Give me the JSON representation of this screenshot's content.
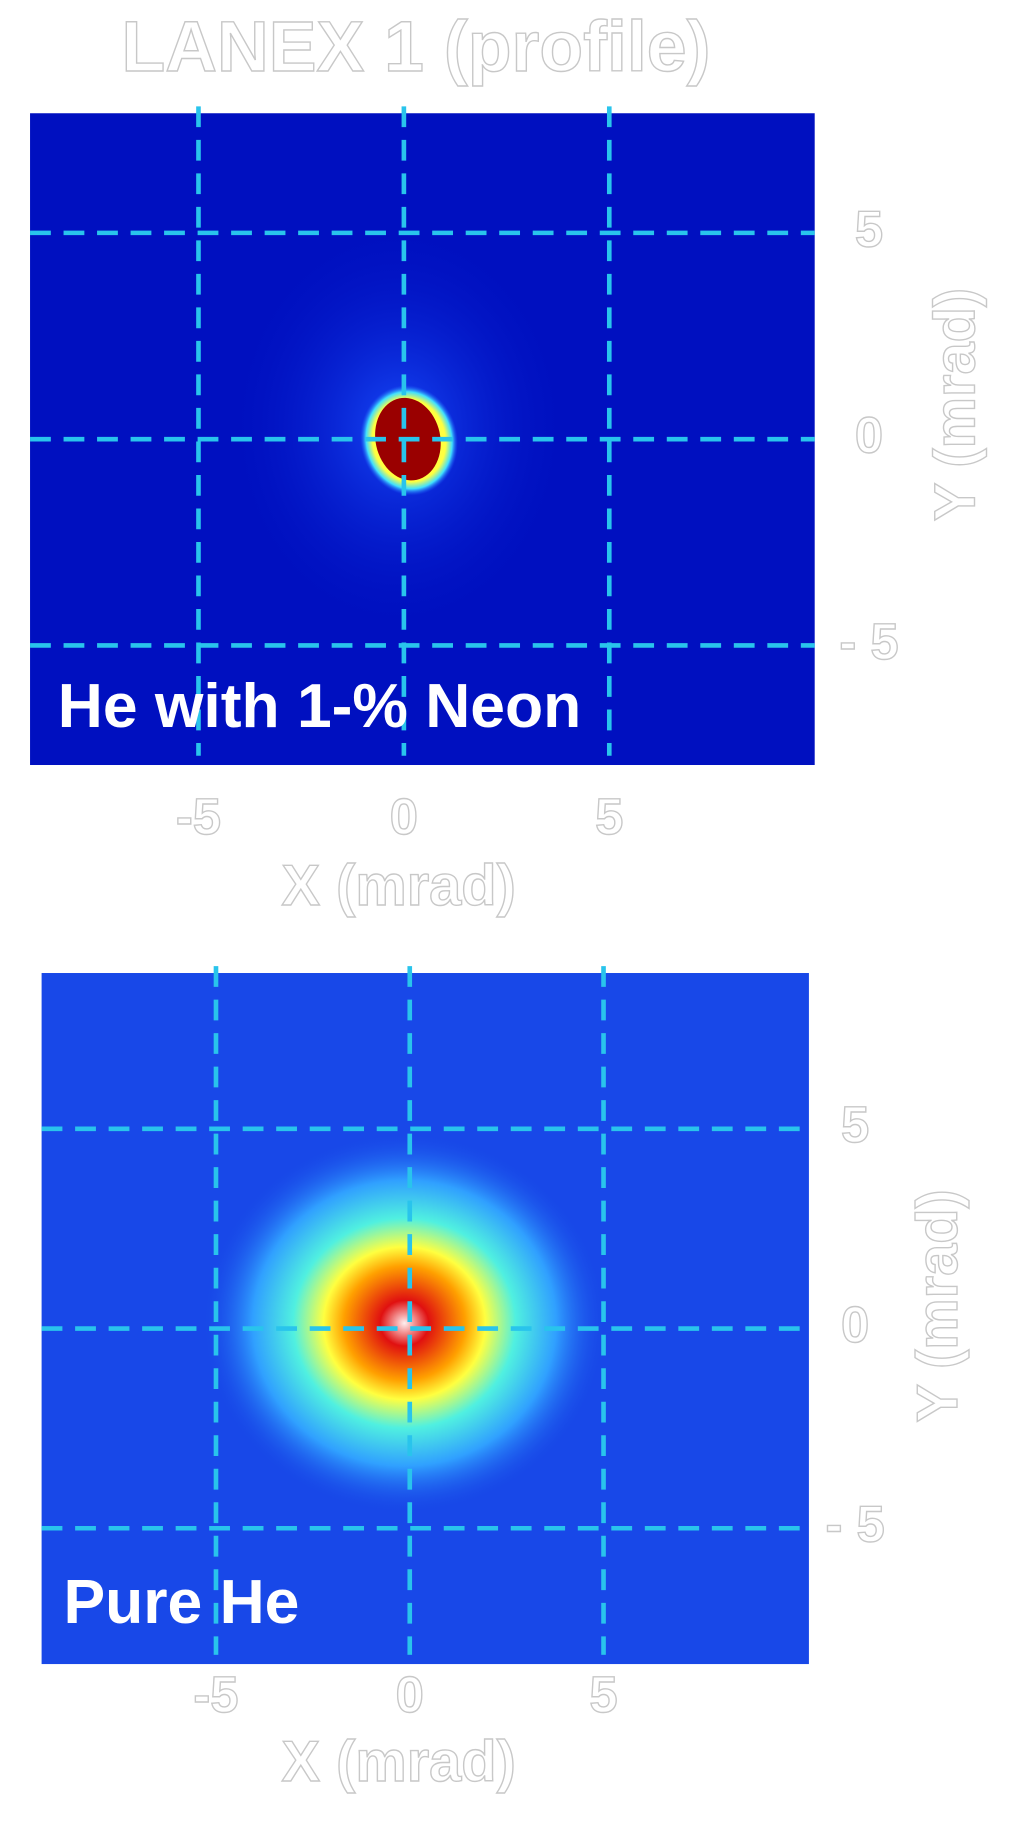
{
  "chart_data": [
    {
      "type": "image",
      "title": "LANEX 1 (profile)",
      "annotation": "He with 1-% Neon",
      "x_label": "X (mrad)",
      "y_label": "Y (mrad)",
      "xlim": [
        -9.1,
        10
      ],
      "ylim": [
        -7.9,
        7.9
      ],
      "xticks": [
        -5,
        0,
        5
      ],
      "yticks": [
        5,
        0,
        {
          "value": -5,
          "label": "- 5"
        }
      ],
      "grid": true
    },
    {
      "type": "image",
      "annotation": "Pure He",
      "x_label": "X (mrad)",
      "y_label": "Y (mrad)",
      "xlim": [
        -9.5,
        10.3
      ],
      "ylim": [
        -8.4,
        8.9
      ],
      "xticks": [
        -5,
        0,
        5
      ],
      "yticks": [
        5,
        0,
        {
          "value": -5,
          "label": "- 5"
        }
      ],
      "grid": true
    }
  ]
}
